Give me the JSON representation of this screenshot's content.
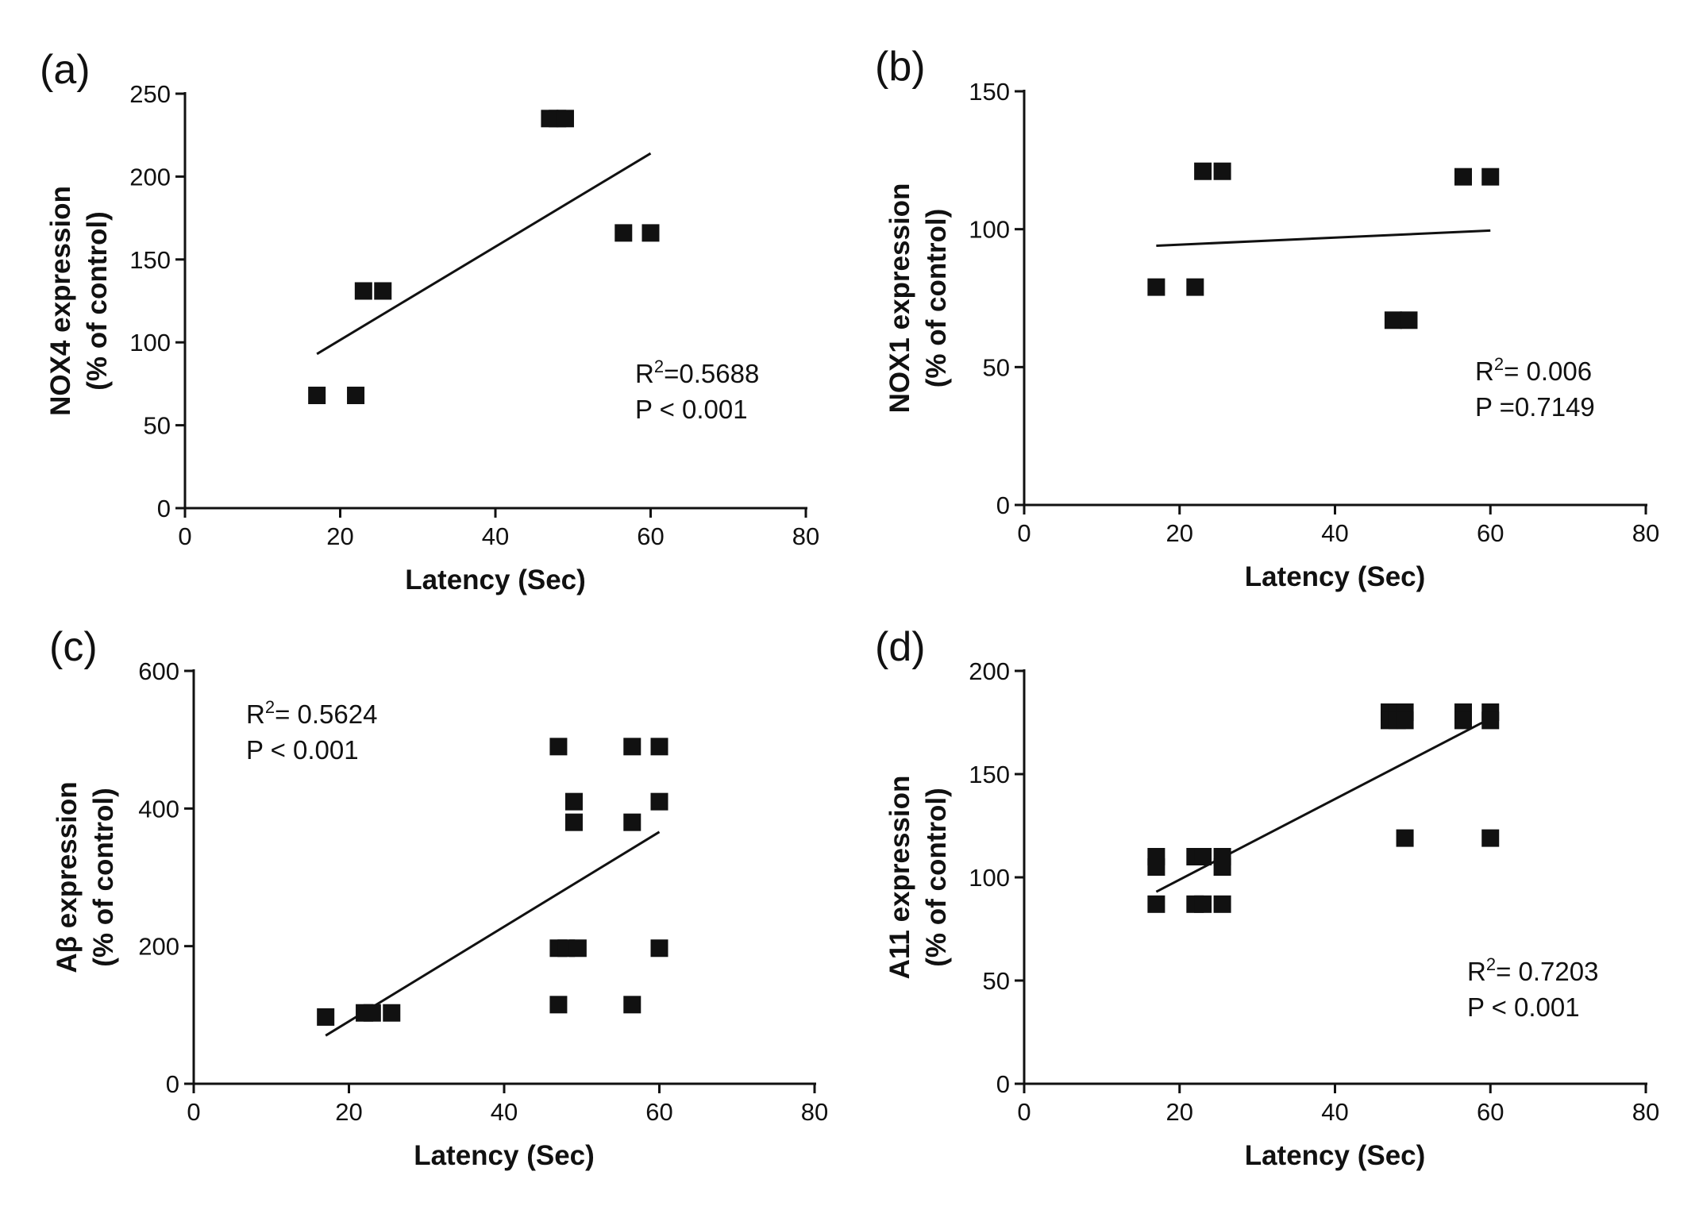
{
  "figure": {
    "colors": {
      "ink": "#111111",
      "background": "#ffffff"
    }
  },
  "chart_data": [
    {
      "type": "scatter",
      "panel_label": "(a)",
      "title": "",
      "xlabel": "Latency (Sec)",
      "ylabel": "NOX4 expression",
      "ylabel2": "(% of control)",
      "xlim": [
        0,
        80
      ],
      "ylim": [
        0,
        250
      ],
      "xticks": [
        "0",
        "20",
        "40",
        "60",
        "80"
      ],
      "yticks": [
        "0",
        "50",
        "100",
        "150",
        "200",
        "250"
      ],
      "points": [
        [
          17,
          68
        ],
        [
          22,
          68
        ],
        [
          23,
          131
        ],
        [
          25.5,
          131
        ],
        [
          47,
          235
        ],
        [
          48,
          235
        ],
        [
          49,
          235
        ],
        [
          56.5,
          166
        ],
        [
          60,
          166
        ]
      ],
      "fit_line": {
        "from": [
          17,
          93
        ],
        "to": [
          60,
          214
        ]
      },
      "stats": {
        "r2_prefix": "R",
        "r2_sup": "2",
        "r2_value": "=0.5688",
        "p_text": "P < 0.001"
      },
      "stats_position": "lower-right"
    },
    {
      "type": "scatter",
      "panel_label": "(b)",
      "title": "",
      "xlabel": "Latency (Sec)",
      "ylabel": "NOX1 expression",
      "ylabel2": "(% of control)",
      "xlim": [
        0,
        80
      ],
      "ylim": [
        0,
        150
      ],
      "xticks": [
        "0",
        "20",
        "40",
        "60",
        "80"
      ],
      "yticks": [
        "0",
        "50",
        "100",
        "150"
      ],
      "points": [
        [
          17,
          79
        ],
        [
          22,
          79
        ],
        [
          23,
          121
        ],
        [
          25.5,
          121
        ],
        [
          47.5,
          67
        ],
        [
          49.5,
          67
        ],
        [
          56.5,
          119
        ],
        [
          60,
          119
        ]
      ],
      "fit_line": {
        "from": [
          17,
          94
        ],
        "to": [
          60,
          99.5
        ]
      },
      "stats": {
        "r2_prefix": "R",
        "r2_sup": "2",
        "r2_value": "= 0.006",
        "p_text": "P =0.7149"
      },
      "stats_position": "lower-right"
    },
    {
      "type": "scatter",
      "panel_label": "(c)",
      "title": "",
      "xlabel": "Latency (Sec)",
      "ylabel": "Aβ expression",
      "ylabel2": "(% of control)",
      "xlim": [
        0,
        80
      ],
      "ylim": [
        0,
        600
      ],
      "xticks": [
        "0",
        "20",
        "40",
        "60",
        "80"
      ],
      "yticks": [
        "0",
        "200",
        "400",
        "600"
      ],
      "points": [
        [
          17,
          97
        ],
        [
          22,
          103
        ],
        [
          23,
          103
        ],
        [
          25.5,
          103
        ],
        [
          47,
          490
        ],
        [
          49,
          410
        ],
        [
          49,
          380
        ],
        [
          47,
          197
        ],
        [
          48,
          197
        ],
        [
          49.5,
          197
        ],
        [
          47,
          115
        ],
        [
          56.5,
          490
        ],
        [
          60,
          490
        ],
        [
          60,
          410
        ],
        [
          56.5,
          380
        ],
        [
          60,
          197
        ],
        [
          56.5,
          115
        ]
      ],
      "fit_line": {
        "from": [
          17,
          70
        ],
        "to": [
          60,
          366
        ]
      },
      "stats": {
        "r2_prefix": "R",
        "r2_sup": "2",
        "r2_value": "= 0.5624",
        "p_text": "P < 0.001"
      },
      "stats_position": "upper-left"
    },
    {
      "type": "scatter",
      "panel_label": "(d)",
      "title": "",
      "xlabel": "Latency (Sec)",
      "ylabel": "A11 expression",
      "ylabel2": "(% of control)",
      "xlim": [
        0,
        80
      ],
      "ylim": [
        0,
        200
      ],
      "xticks": [
        "0",
        "20",
        "40",
        "60",
        "80"
      ],
      "yticks": [
        "0",
        "50",
        "100",
        "150",
        "200"
      ],
      "points": [
        [
          17,
          110
        ],
        [
          17,
          105
        ],
        [
          17,
          87
        ],
        [
          22,
          110
        ],
        [
          23,
          110
        ],
        [
          22,
          87
        ],
        [
          23,
          87
        ],
        [
          25.5,
          110
        ],
        [
          25.5,
          105
        ],
        [
          25.5,
          87
        ],
        [
          47,
          180
        ],
        [
          48,
          180
        ],
        [
          49,
          180
        ],
        [
          47,
          176
        ],
        [
          48,
          176
        ],
        [
          49,
          176
        ],
        [
          49,
          119
        ],
        [
          56.5,
          180
        ],
        [
          56.5,
          176
        ],
        [
          60,
          180
        ],
        [
          60,
          176
        ],
        [
          60,
          119
        ]
      ],
      "fit_line": {
        "from": [
          17,
          93
        ],
        "to": [
          60,
          177
        ]
      },
      "stats": {
        "r2_prefix": "R",
        "r2_sup": "2",
        "r2_value": "= 0.7203",
        "p_text": "P < 0.001"
      },
      "stats_position": "lower-right"
    }
  ]
}
